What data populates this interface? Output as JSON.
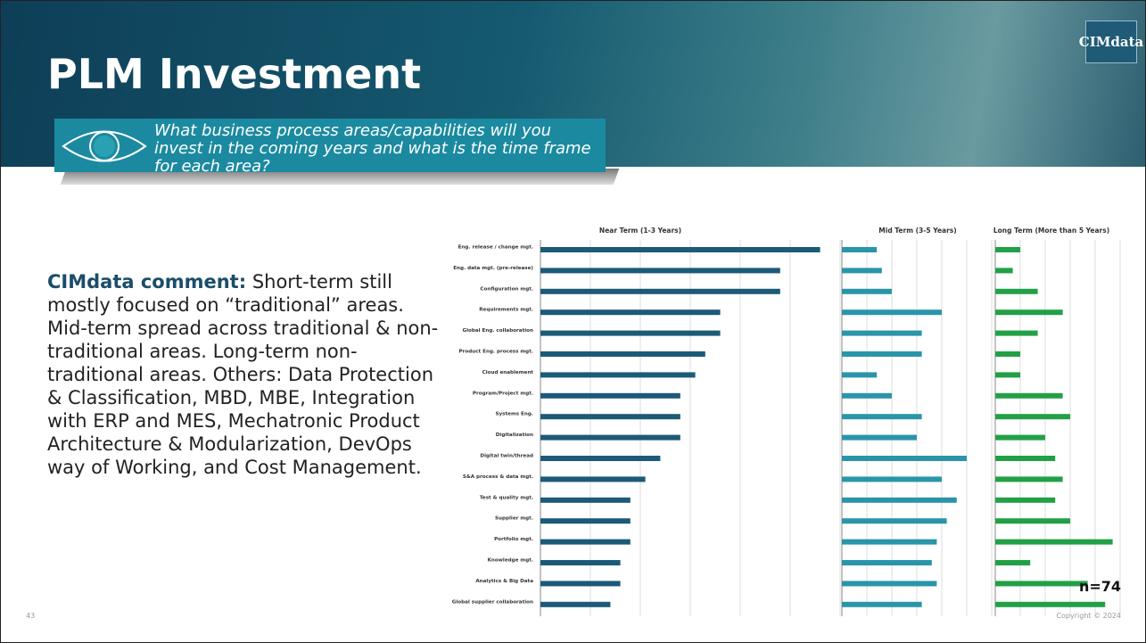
{
  "slide": {
    "title": "PLM Investment",
    "question": "What business process areas/capabilities will you invest in the coming years and what is the time frame for each area?",
    "comment_label": "CIMdata comment:",
    "comment": "Short-term still mostly focused on “traditional” areas. Mid-term spread across traditional & non-traditional areas. Long-term non-traditional areas. Others: Data Protection & Classification, MBD, MBE, Integration with ERP and MES, Mechatronic Product Architecture & Modularization, DevOps way of Working, and Cost Management.",
    "logo": "CIMdata",
    "note": "n=74",
    "page_number": "43",
    "copyright": "Copyright © 2024"
  },
  "chart_data": [
    {
      "type": "barh",
      "title": "Near Term (1-3 Years)",
      "color": "#1d5a78",
      "categories": [
        "Eng. release / change mgt.",
        "Eng. data mgt. (pre-release)",
        "Configuration mgt.",
        "Requirements mgt.",
        "Global Eng. collaboration",
        "Product Eng. process mgt.",
        "Cloud enablement",
        "Program/Project mgt.",
        "Systems Eng.",
        "Digitalization",
        "Digital twin/thread",
        "S&A process & data mgt.",
        "Test & quality mgt.",
        "Supplier mgt.",
        "Portfolio mgt.",
        "Knowledge mgt.",
        "Analytics & Big Data",
        "Global supplier collaboration"
      ],
      "values": [
        28,
        24,
        24,
        18,
        18,
        16.5,
        15.5,
        14,
        14,
        14,
        12,
        10.5,
        9,
        9,
        9,
        8,
        8,
        7
      ],
      "xlim": [
        0,
        30
      ],
      "xticks": [
        0,
        5,
        10,
        15,
        20,
        25,
        30
      ],
      "grid": true
    },
    {
      "type": "barh",
      "title": "Mid Term (3-5 Years)",
      "color": "#2a95a9",
      "values": [
        7,
        8,
        10,
        20,
        16,
        16,
        7,
        10,
        16,
        15,
        25,
        20,
        23,
        21,
        19,
        18,
        19,
        16
      ],
      "xlim": [
        0,
        30
      ],
      "xticks": [
        0,
        5,
        10,
        15,
        20,
        25,
        30
      ],
      "grid": true
    },
    {
      "type": "barh",
      "title": "Long Term (More than 5 Years)",
      "color": "#22a046",
      "values": [
        5,
        3.5,
        8.5,
        13.5,
        8.5,
        5,
        5,
        13.5,
        15,
        10,
        12,
        13.5,
        12,
        15,
        23.5,
        7,
        18.5,
        22
      ],
      "xlim": [
        0,
        25
      ],
      "xticks": [
        0,
        5,
        10,
        15,
        20,
        25
      ],
      "grid": true
    }
  ]
}
